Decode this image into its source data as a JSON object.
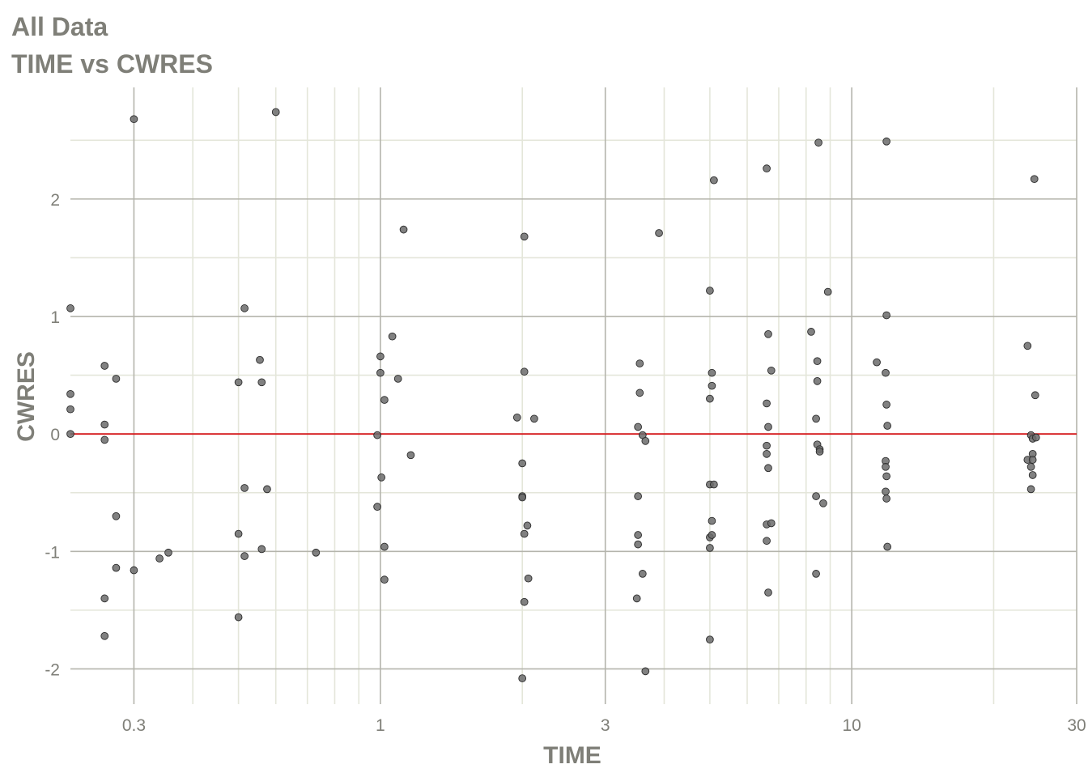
{
  "chart_data": {
    "type": "scatter",
    "title": "All Data",
    "subtitle": "TIME vs CWRES",
    "xlabel": "TIME",
    "ylabel": "CWRES",
    "x_scale": "log10",
    "xlim": [
      0.22,
      30
    ],
    "ylim": [
      -2.3,
      2.95
    ],
    "x_ticks": [
      0.3,
      1,
      3,
      10,
      30
    ],
    "x_tick_labels": [
      "0.3",
      "1",
      "3",
      "10",
      "30"
    ],
    "y_ticks": [
      -2,
      -1,
      0,
      1,
      2
    ],
    "y_tick_labels": [
      "-2",
      "-1",
      "0",
      "1",
      "2"
    ],
    "grid": true,
    "reference_line": {
      "y": 0,
      "color": "#d7191c"
    },
    "colors": {
      "point_fill": "#6b6b6b",
      "point_stroke": "#2b2b2b",
      "grid_major": "#b4b4ac",
      "grid_minor": "#e4e6da",
      "text": "#7f7f78"
    },
    "points": [
      [
        0.22,
        1.07
      ],
      [
        0.22,
        0.34
      ],
      [
        0.22,
        0.21
      ],
      [
        0.22,
        0.0
      ],
      [
        0.26,
        0.58
      ],
      [
        0.26,
        0.08
      ],
      [
        0.26,
        -0.05
      ],
      [
        0.26,
        -1.4
      ],
      [
        0.26,
        -1.72
      ],
      [
        0.275,
        0.47
      ],
      [
        0.275,
        -0.7
      ],
      [
        0.275,
        -1.14
      ],
      [
        0.3,
        2.68
      ],
      [
        0.3,
        -1.16
      ],
      [
        0.34,
        -1.06
      ],
      [
        0.355,
        -1.01
      ],
      [
        0.5,
        0.44
      ],
      [
        0.5,
        -0.85
      ],
      [
        0.5,
        -1.56
      ],
      [
        0.515,
        1.07
      ],
      [
        0.515,
        -0.46
      ],
      [
        0.515,
        -1.04
      ],
      [
        0.555,
        0.63
      ],
      [
        0.56,
        0.44
      ],
      [
        0.56,
        -0.98
      ],
      [
        0.575,
        -0.47
      ],
      [
        0.6,
        2.74
      ],
      [
        0.73,
        -1.01
      ],
      [
        0.985,
        -0.01
      ],
      [
        0.985,
        -0.62
      ],
      [
        1.0,
        0.66
      ],
      [
        1.0,
        0.52
      ],
      [
        1.005,
        -0.37
      ],
      [
        1.02,
        0.29
      ],
      [
        1.02,
        -0.96
      ],
      [
        1.02,
        -1.24
      ],
      [
        1.06,
        0.83
      ],
      [
        1.09,
        0.47
      ],
      [
        1.12,
        1.74
      ],
      [
        1.16,
        -0.18
      ],
      [
        1.95,
        0.14
      ],
      [
        2.0,
        -0.25
      ],
      [
        2.0,
        -0.53
      ],
      [
        2.0,
        -0.54
      ],
      [
        2.0,
        -2.08
      ],
      [
        2.02,
        1.68
      ],
      [
        2.02,
        0.53
      ],
      [
        2.02,
        -0.85
      ],
      [
        2.02,
        -1.43
      ],
      [
        2.05,
        -0.78
      ],
      [
        2.06,
        -1.23
      ],
      [
        2.12,
        0.13
      ],
      [
        3.5,
        -1.4
      ],
      [
        3.52,
        0.06
      ],
      [
        3.52,
        -0.53
      ],
      [
        3.52,
        -0.86
      ],
      [
        3.52,
        -0.94
      ],
      [
        3.55,
        0.6
      ],
      [
        3.55,
        0.35
      ],
      [
        3.6,
        -0.01
      ],
      [
        3.6,
        -1.19
      ],
      [
        3.65,
        -0.06
      ],
      [
        3.65,
        -2.02
      ],
      [
        3.9,
        1.71
      ],
      [
        5.0,
        1.22
      ],
      [
        5.0,
        0.3
      ],
      [
        5.0,
        -0.43
      ],
      [
        5.0,
        -0.88
      ],
      [
        5.0,
        -0.97
      ],
      [
        5.0,
        -1.75
      ],
      [
        5.05,
        0.52
      ],
      [
        5.05,
        0.41
      ],
      [
        5.05,
        -0.74
      ],
      [
        5.05,
        -0.86
      ],
      [
        5.1,
        -0.43
      ],
      [
        5.1,
        2.16
      ],
      [
        6.6,
        2.26
      ],
      [
        6.6,
        0.26
      ],
      [
        6.6,
        -0.1
      ],
      [
        6.6,
        -0.17
      ],
      [
        6.6,
        -0.91
      ],
      [
        6.6,
        -0.77
      ],
      [
        6.65,
        -1.35
      ],
      [
        6.65,
        0.85
      ],
      [
        6.65,
        0.06
      ],
      [
        6.65,
        -0.29
      ],
      [
        6.75,
        0.54
      ],
      [
        6.75,
        -0.76
      ],
      [
        8.2,
        0.87
      ],
      [
        8.4,
        0.13
      ],
      [
        8.4,
        -0.53
      ],
      [
        8.4,
        -1.19
      ],
      [
        8.45,
        0.62
      ],
      [
        8.45,
        0.45
      ],
      [
        8.45,
        -0.09
      ],
      [
        8.5,
        2.48
      ],
      [
        8.55,
        -0.13
      ],
      [
        8.55,
        -0.15
      ],
      [
        8.7,
        -0.59
      ],
      [
        8.9,
        1.21
      ],
      [
        11.3,
        0.61
      ],
      [
        11.8,
        0.52
      ],
      [
        11.8,
        -0.23
      ],
      [
        11.8,
        -0.28
      ],
      [
        11.8,
        -0.49
      ],
      [
        11.85,
        2.49
      ],
      [
        11.85,
        1.01
      ],
      [
        11.85,
        0.25
      ],
      [
        11.85,
        -0.36
      ],
      [
        11.85,
        -0.55
      ],
      [
        11.9,
        0.07
      ],
      [
        11.9,
        -0.96
      ],
      [
        23.6,
        0.75
      ],
      [
        23.6,
        -0.22
      ],
      [
        24.0,
        -0.01
      ],
      [
        24.0,
        -0.28
      ],
      [
        24.0,
        -0.47
      ],
      [
        24.2,
        -0.04
      ],
      [
        24.2,
        -0.17
      ],
      [
        24.2,
        -0.22
      ],
      [
        24.2,
        -0.35
      ],
      [
        24.4,
        2.17
      ],
      [
        24.5,
        0.33
      ],
      [
        24.6,
        -0.03
      ]
    ]
  }
}
